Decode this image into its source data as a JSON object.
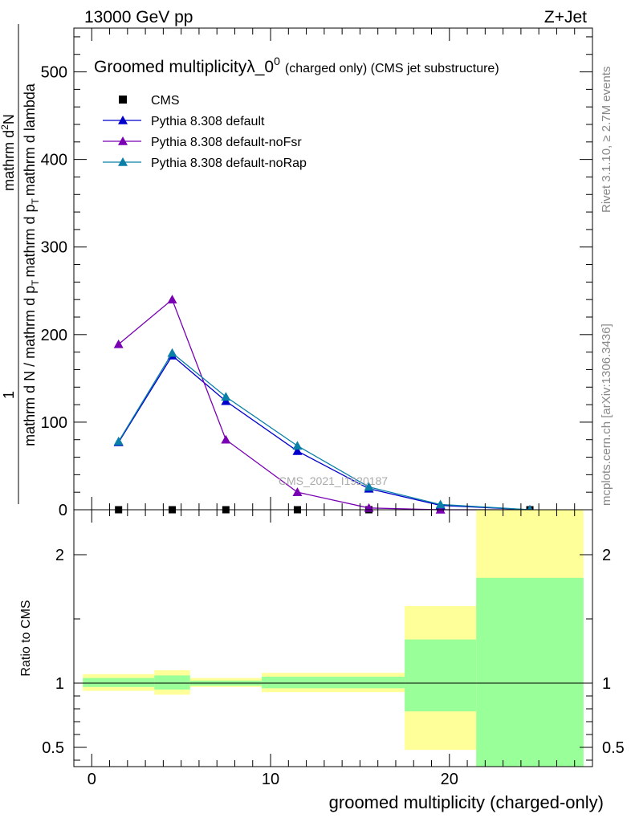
{
  "header": {
    "left": "13000 GeV pp",
    "right": "Z+Jet"
  },
  "side": {
    "rivet": "Rivet 3.1.10, ≥ 2.7M events",
    "mcplots": "mcplots.cern.ch [arXiv:1306.3436]"
  },
  "watermark": "CMS_2021_I1920187",
  "chart_data": [
    {
      "type": "line",
      "title": {
        "main": "Groomed multiplicity",
        "lambda": "λ_0",
        "sup": "0",
        "rest": "(charged only) (CMS jet substructure)"
      },
      "ylabel": {
        "one": "1",
        "numerator": "mathrm d",
        "numerator_sup": "2",
        "numerator_end": "N",
        "denominator_a": "mathrm d N / mathrm d p",
        "denominator_b": "mathrm d p",
        "denominator_c": "mathrm d lambda",
        "sub_T": "T"
      },
      "ylim": [
        0,
        550
      ],
      "xlim": [
        -1,
        28
      ],
      "y_ticks": [
        0,
        100,
        200,
        300,
        400,
        500
      ],
      "legend_position": "top-left",
      "legend": [
        {
          "name": "CMS",
          "marker": "square",
          "color": "#000000"
        },
        {
          "name": "Pythia 8.308 default",
          "marker": "triangle",
          "color": "#0000cc"
        },
        {
          "name": "Pythia 8.308 default-noFsr",
          "marker": "triangle",
          "color": "#7a00b3"
        },
        {
          "name": "Pythia 8.308 default-noRap",
          "marker": "triangle",
          "color": "#0a7fa8"
        }
      ],
      "x": [
        1.5,
        4.5,
        7.5,
        11.5,
        15.5,
        19.5,
        24.5
      ],
      "series": [
        {
          "name": "CMS",
          "values": [
            0,
            0,
            0,
            0,
            0,
            0,
            0
          ]
        },
        {
          "name": "Pythia 8.308 default",
          "values": [
            77,
            176,
            124,
            67,
            24,
            5,
            0
          ]
        },
        {
          "name": "Pythia 8.308 default-noFsr",
          "values": [
            189,
            240,
            80,
            20,
            2,
            0,
            0
          ]
        },
        {
          "name": "Pythia 8.308 default-noRap",
          "values": [
            78,
            179,
            129,
            73,
            26,
            6,
            0
          ]
        }
      ]
    },
    {
      "type": "area",
      "ylabel": "Ratio to CMS",
      "xlabel": "groomed multiplicity (charged-only)",
      "ylim": [
        0.35,
        2.35
      ],
      "xlim": [
        -1,
        28
      ],
      "y_ticks": [
        0.5,
        1,
        2
      ],
      "y_tick_labels": [
        "0.5",
        "1",
        "2"
      ],
      "x_ticks": [
        0,
        10,
        20
      ],
      "x_tick_labels": [
        "0",
        "10",
        "20"
      ],
      "bands": [
        {
          "x0": -0.5,
          "x1": 3.5,
          "yellow": [
            0.94,
            1.07
          ],
          "green": [
            0.97,
            1.04
          ]
        },
        {
          "x0": 3.5,
          "x1": 5.5,
          "yellow": [
            0.91,
            1.1
          ],
          "green": [
            0.95,
            1.06
          ]
        },
        {
          "x0": 5.5,
          "x1": 9.5,
          "yellow": [
            0.97,
            1.04
          ],
          "green": [
            0.98,
            1.02
          ]
        },
        {
          "x0": 9.5,
          "x1": 13.5,
          "yellow": [
            0.93,
            1.08
          ],
          "green": [
            0.96,
            1.05
          ]
        },
        {
          "x0": 13.5,
          "x1": 17.5,
          "yellow": [
            0.93,
            1.08
          ],
          "green": [
            0.96,
            1.05
          ]
        },
        {
          "x0": 17.5,
          "x1": 21.5,
          "yellow": [
            0.48,
            1.6
          ],
          "green": [
            0.78,
            1.34
          ]
        },
        {
          "x0": 21.5,
          "x1": 27.5,
          "yellow": [
            0.35,
            2.35
          ],
          "green": [
            0.35,
            1.82
          ]
        }
      ]
    }
  ],
  "colors": {
    "band_yellow": "#ffff99",
    "band_green": "#99ff99"
  }
}
